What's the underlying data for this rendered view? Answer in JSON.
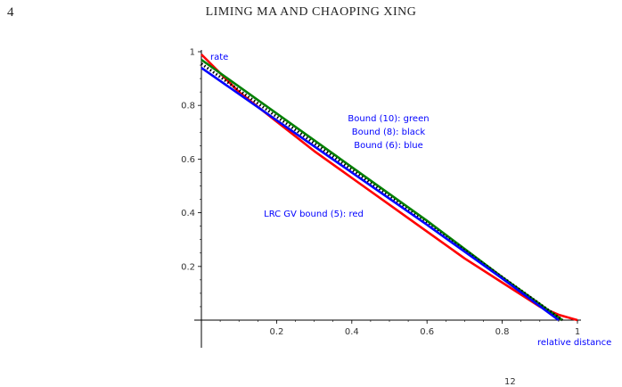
{
  "header": {
    "page_number": "4",
    "running_head": "LIMING MA AND CHAOPING XING"
  },
  "footer": {
    "superscript": "12"
  },
  "chart_data": {
    "type": "line",
    "xlabel": "relative distance",
    "ylabel": "rate",
    "xlim": [
      0,
      1
    ],
    "ylim": [
      0,
      1
    ],
    "xticks": [
      "0.2",
      "0.4",
      "0.6",
      "0.8",
      "1"
    ],
    "yticks": [
      "0.2",
      "0.4",
      "0.6",
      "0.8",
      "1"
    ],
    "annotations": [
      "Bound (10): green",
      "Bound (8): black",
      "Bound (6): blue",
      "LRC GV bound (5): red"
    ],
    "series": [
      {
        "color": "#ff0000",
        "style": "solid",
        "x": [
          0.0,
          0.1,
          0.2,
          0.3,
          0.4,
          0.5,
          0.6,
          0.7,
          0.8,
          0.9,
          0.95,
          1.0
        ],
        "y": [
          0.99,
          0.85,
          0.74,
          0.63,
          0.53,
          0.43,
          0.33,
          0.23,
          0.14,
          0.05,
          0.02,
          0.0
        ]
      },
      {
        "color": "#008000",
        "style": "solid",
        "x": [
          0.0,
          0.2,
          0.4,
          0.6,
          0.8,
          0.96
        ],
        "y": [
          0.97,
          0.77,
          0.57,
          0.37,
          0.16,
          0.0
        ]
      },
      {
        "color": "#000000",
        "style": "dotted",
        "x": [
          0.0,
          0.2,
          0.4,
          0.6,
          0.8,
          0.96
        ],
        "y": [
          0.955,
          0.758,
          0.56,
          0.36,
          0.16,
          0.0
        ]
      },
      {
        "color": "#0000ff",
        "style": "solid",
        "x": [
          0.0,
          0.2,
          0.4,
          0.6,
          0.8,
          0.95
        ],
        "y": [
          0.94,
          0.745,
          0.55,
          0.355,
          0.155,
          0.0
        ]
      }
    ]
  }
}
